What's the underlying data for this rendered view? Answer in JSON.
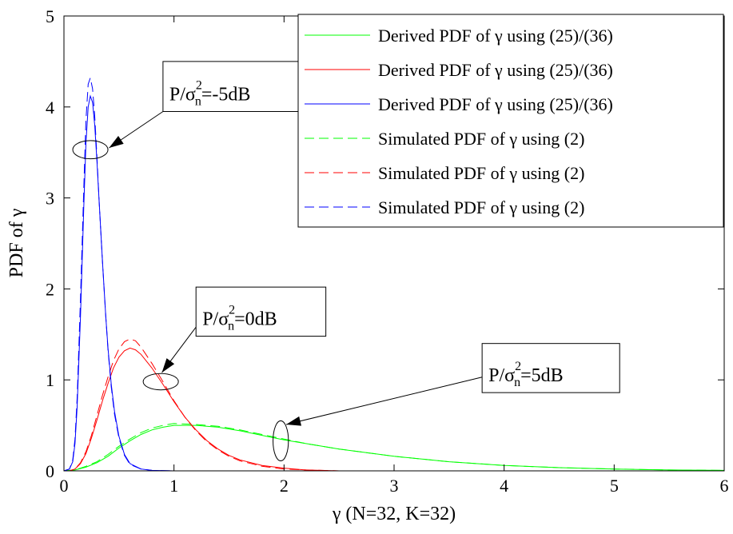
{
  "chart_data": {
    "type": "line",
    "xlabel": "γ (N=32, K=32)",
    "ylabel": "PDF of γ",
    "xlim": [
      0,
      6
    ],
    "ylim": [
      0,
      5
    ],
    "xticks": [
      "0",
      "1",
      "2",
      "3",
      "4",
      "5",
      "6"
    ],
    "yticks": [
      "0",
      "1",
      "2",
      "3",
      "4",
      "5"
    ],
    "grid": false,
    "legend_position": "top-right",
    "series": [
      {
        "name": "Derived PDF of γ using (25)/(36)",
        "color": "#00ff00",
        "style": "solid",
        "x": [
          0,
          0.1,
          0.2,
          0.3,
          0.4,
          0.5,
          0.6,
          0.7,
          0.8,
          0.9,
          1.0,
          1.2,
          1.4,
          1.6,
          1.8,
          2.0,
          2.2,
          2.5,
          3.0,
          3.5,
          4.0,
          4.5,
          5.0,
          5.5,
          6.0
        ],
        "y": [
          0,
          0.01,
          0.04,
          0.09,
          0.16,
          0.25,
          0.33,
          0.4,
          0.45,
          0.48,
          0.5,
          0.5,
          0.48,
          0.44,
          0.39,
          0.34,
          0.3,
          0.24,
          0.16,
          0.1,
          0.06,
          0.035,
          0.02,
          0.01,
          0.005
        ]
      },
      {
        "name": "Derived PDF of γ using (25)/(36)",
        "color": "#ff0000",
        "style": "solid",
        "x": [
          0,
          0.05,
          0.1,
          0.15,
          0.2,
          0.25,
          0.3,
          0.35,
          0.4,
          0.45,
          0.5,
          0.55,
          0.6,
          0.65,
          0.7,
          0.8,
          0.9,
          1.0,
          1.1,
          1.2,
          1.3,
          1.4,
          1.5,
          1.6,
          1.8,
          2.0,
          2.2,
          2.5,
          3.0,
          6.0
        ],
        "y": [
          0,
          0.0,
          0.02,
          0.08,
          0.19,
          0.36,
          0.56,
          0.77,
          0.96,
          1.13,
          1.25,
          1.32,
          1.35,
          1.33,
          1.28,
          1.13,
          0.95,
          0.76,
          0.59,
          0.45,
          0.33,
          0.24,
          0.17,
          0.12,
          0.06,
          0.03,
          0.01,
          0.0,
          0.0,
          0.0
        ]
      },
      {
        "name": "Derived PDF of γ using (25)/(36)",
        "color": "#0000ff",
        "style": "solid",
        "x": [
          0,
          0.05,
          0.08,
          0.1,
          0.12,
          0.15,
          0.18,
          0.2,
          0.22,
          0.24,
          0.26,
          0.28,
          0.3,
          0.32,
          0.35,
          0.38,
          0.4,
          0.43,
          0.46,
          0.5,
          0.55,
          0.6,
          0.7,
          0.8,
          1.0,
          6.0
        ],
        "y": [
          0,
          0.02,
          0.1,
          0.3,
          0.7,
          1.7,
          2.9,
          3.6,
          4.0,
          4.12,
          4.05,
          3.8,
          3.4,
          2.95,
          2.3,
          1.7,
          1.35,
          0.95,
          0.65,
          0.38,
          0.18,
          0.08,
          0.02,
          0.005,
          0.0,
          0.0
        ]
      },
      {
        "name": "Simulated PDF of γ using (2)",
        "color": "#00ff00",
        "style": "dashed",
        "x": [
          0,
          0.1,
          0.2,
          0.3,
          0.4,
          0.5,
          0.6,
          0.7,
          0.8,
          0.9,
          1.0,
          1.2,
          1.4,
          1.6,
          1.8,
          2.0,
          2.2,
          2.5,
          3.0,
          3.5,
          4.0,
          4.5,
          5.0,
          5.5,
          6.0
        ],
        "y": [
          0,
          0.01,
          0.05,
          0.1,
          0.18,
          0.27,
          0.35,
          0.42,
          0.47,
          0.5,
          0.52,
          0.51,
          0.49,
          0.45,
          0.4,
          0.35,
          0.3,
          0.24,
          0.16,
          0.1,
          0.06,
          0.035,
          0.02,
          0.01,
          0.005
        ]
      },
      {
        "name": "Simulated PDF of γ using (2)",
        "color": "#ff0000",
        "style": "dashed",
        "x": [
          0,
          0.05,
          0.1,
          0.15,
          0.2,
          0.25,
          0.3,
          0.35,
          0.4,
          0.45,
          0.5,
          0.55,
          0.6,
          0.65,
          0.7,
          0.8,
          0.9,
          1.0,
          1.1,
          1.2,
          1.3,
          1.4,
          1.5,
          1.6,
          1.8,
          2.0,
          2.2,
          2.5,
          3.0,
          6.0
        ],
        "y": [
          0,
          0.0,
          0.02,
          0.09,
          0.21,
          0.39,
          0.61,
          0.83,
          1.03,
          1.21,
          1.34,
          1.42,
          1.45,
          1.43,
          1.36,
          1.18,
          0.98,
          0.77,
          0.59,
          0.44,
          0.32,
          0.23,
          0.16,
          0.11,
          0.05,
          0.02,
          0.01,
          0.0,
          0.0,
          0.0
        ]
      },
      {
        "name": "Simulated PDF of γ using (2)",
        "color": "#0000ff",
        "style": "dashed",
        "x": [
          0,
          0.05,
          0.08,
          0.1,
          0.12,
          0.15,
          0.18,
          0.2,
          0.22,
          0.24,
          0.26,
          0.28,
          0.3,
          0.32,
          0.35,
          0.38,
          0.4,
          0.43,
          0.46,
          0.5,
          0.55,
          0.6,
          0.7,
          0.8,
          1.0,
          6.0
        ],
        "y": [
          0,
          0.02,
          0.12,
          0.35,
          0.8,
          1.9,
          3.1,
          3.85,
          4.25,
          4.32,
          4.2,
          3.9,
          3.45,
          2.95,
          2.3,
          1.7,
          1.33,
          0.92,
          0.62,
          0.36,
          0.17,
          0.07,
          0.02,
          0.005,
          0.0,
          0.0
        ]
      }
    ],
    "annotations": [
      {
        "main": "P/σ",
        "sup": "2",
        "sub": "n",
        "suffix": "=-5dB",
        "box": {
          "x0": 0.9,
          "y0": 3.95,
          "x1": 2.2,
          "y1": 4.5
        },
        "ellipse": {
          "cx": 0.24,
          "cy": 3.53,
          "rx": 0.16,
          "ry": 0.1
        },
        "arrow": {
          "x0": 0.9,
          "y0": 3.95,
          "x1": 0.41,
          "y1": 3.55
        }
      },
      {
        "main": "P/σ",
        "sup": "2",
        "sub": "n",
        "suffix": "=0dB",
        "box": {
          "x0": 1.2,
          "y0": 1.48,
          "x1": 2.38,
          "y1": 2.02
        },
        "ellipse": {
          "cx": 0.88,
          "cy": 0.98,
          "rx": 0.16,
          "ry": 0.09
        },
        "arrow": {
          "x0": 1.2,
          "y0": 1.58,
          "x1": 0.89,
          "y1": 1.08
        }
      },
      {
        "main": "P/σ",
        "sup": "2",
        "sub": "n",
        "suffix": "=5dB",
        "box": {
          "x0": 3.8,
          "y0": 0.86,
          "x1": 5.05,
          "y1": 1.4
        },
        "ellipse": {
          "cx": 1.97,
          "cy": 0.33,
          "rx": 0.07,
          "ry": 0.22
        },
        "arrow": {
          "x0": 3.8,
          "y0": 1.03,
          "x1": 2.02,
          "y1": 0.51
        }
      }
    ]
  }
}
